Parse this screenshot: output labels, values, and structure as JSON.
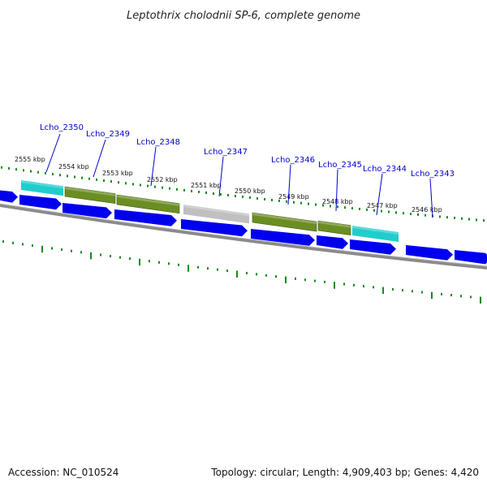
{
  "title": "Leptothrix cholodnii SP-6, complete genome",
  "footer": {
    "accession": "Accession: NC_010524",
    "summary": "Topology: circular; Length: 4,909,403 bp; Genes: 4,420"
  },
  "colors": {
    "label_text": "#0000cc",
    "tick": "#1a8a1a",
    "forward_strand": "#0000ee",
    "green_feature": "#6b8e23",
    "cyan_feature": "#22cccc",
    "gray_feature": "#c0c0c0",
    "backbone": "#808080"
  },
  "kbp_markers": [
    "2555 kbp",
    "2554 kbp",
    "2553 kbp",
    "2552 kbp",
    "2551 kbp",
    "2550 kbp",
    "2549 kbp",
    "2548 kbp",
    "2547 kbp",
    "2546 kbp"
  ],
  "gene_labels": [
    "Lcho_2350",
    "Lcho_2349",
    "Lcho_2348",
    "Lcho_2347",
    "Lcho_2346",
    "Lcho_2345",
    "Lcho_2344",
    "Lcho_2343"
  ],
  "features": {
    "forward_arrows": 10,
    "colored_blocks": [
      "cyan",
      "green",
      "green",
      "gray",
      "green",
      "green",
      "cyan"
    ]
  }
}
